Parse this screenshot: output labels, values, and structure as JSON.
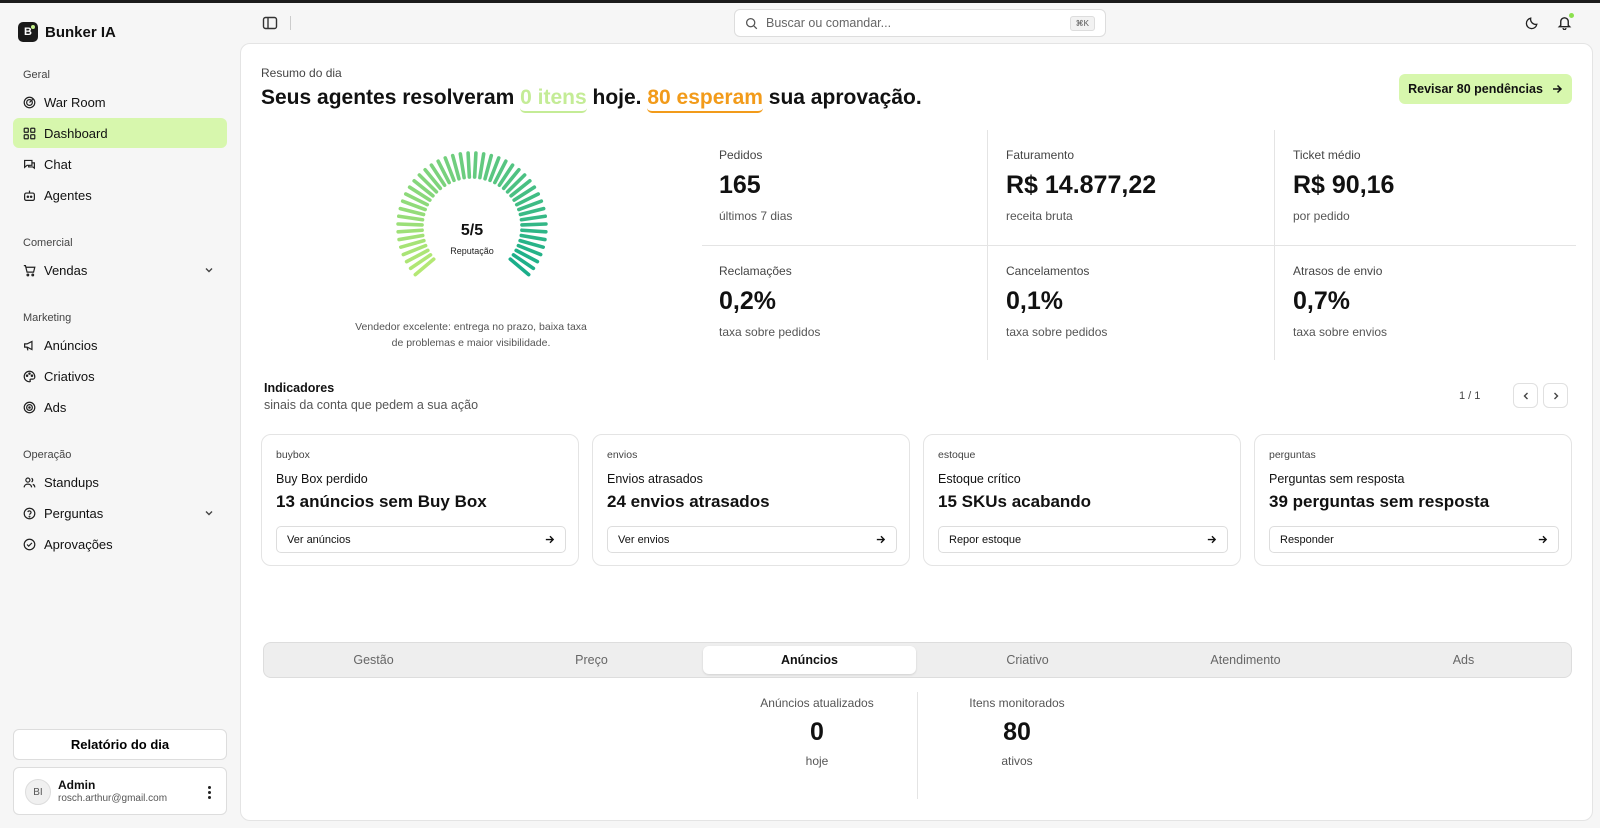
{
  "app": {
    "name": "Bunker IA",
    "logo_letter": "B"
  },
  "sidebar": {
    "groups": [
      {
        "label": "Geral",
        "items": [
          {
            "label": "War Room",
            "icon": "radar-icon"
          },
          {
            "label": "Dashboard",
            "icon": "dashboard-grid-icon",
            "active": true
          },
          {
            "label": "Chat",
            "icon": "chat-icon"
          },
          {
            "label": "Agentes",
            "icon": "bot-icon"
          }
        ]
      },
      {
        "label": "Comercial",
        "items": [
          {
            "label": "Vendas",
            "icon": "cart-icon",
            "expandable": true
          }
        ]
      },
      {
        "label": "Marketing",
        "items": [
          {
            "label": "Anúncios",
            "icon": "megaphone-icon"
          },
          {
            "label": "Criativos",
            "icon": "palette-icon"
          },
          {
            "label": "Ads",
            "icon": "target-icon"
          }
        ]
      },
      {
        "label": "Operação",
        "items": [
          {
            "label": "Standups",
            "icon": "users-icon"
          },
          {
            "label": "Perguntas",
            "icon": "help-circle-icon",
            "expandable": true
          },
          {
            "label": "Aprovações",
            "icon": "check-circle-icon"
          }
        ]
      }
    ],
    "report_button": "Relatório do dia",
    "user": {
      "initials": "BI",
      "name": "Admin",
      "email": "rosch.arthur@gmail.com"
    }
  },
  "header": {
    "search_placeholder": "Buscar ou comandar...",
    "search_shortcut": "⌘K"
  },
  "summary": {
    "label": "Resumo do dia",
    "headline_prefix": "Seus agentes resolveram ",
    "resolved": "0 itens",
    "headline_middle": " hoje. ",
    "waiting": "80 esperam",
    "headline_suffix": " sua aprovação.",
    "review_button": "Revisar 80 pendências"
  },
  "reputation": {
    "value": "5/5",
    "score": 5,
    "max": 5,
    "label": "Reputação",
    "description": "Vendedor excelente: entrega no prazo, baixa taxa de problemas e maior visibilidade."
  },
  "stats": [
    {
      "label": "Pedidos",
      "value": "165",
      "sub": "últimos 7 dias"
    },
    {
      "label": "Faturamento",
      "value": "R$ 14.877,22",
      "sub": "receita bruta"
    },
    {
      "label": "Ticket médio",
      "value": "R$ 90,16",
      "sub": "por pedido"
    },
    {
      "label": "Reclamações",
      "value": "0,2%",
      "sub": "taxa sobre pedidos"
    },
    {
      "label": "Cancelamentos",
      "value": "0,1%",
      "sub": "taxa sobre pedidos"
    },
    {
      "label": "Atrasos de envio",
      "value": "0,7%",
      "sub": "taxa sobre envios"
    }
  ],
  "indicators": {
    "title": "Indicadores",
    "subtitle": "sinais da conta que pedem a sua ação",
    "pager": "1 / 1",
    "cards": [
      {
        "tag": "buybox",
        "title": "Buy Box perdido",
        "value": "13 anúncios sem Buy Box",
        "action": "Ver anúncios"
      },
      {
        "tag": "envios",
        "title": "Envios atrasados",
        "value": "24 envios atrasados",
        "action": "Ver envios"
      },
      {
        "tag": "estoque",
        "title": "Estoque crítico",
        "value": "15 SKUs acabando",
        "action": "Repor estoque"
      },
      {
        "tag": "perguntas",
        "title": "Perguntas sem resposta",
        "value": "39 perguntas sem resposta",
        "action": "Responder"
      }
    ]
  },
  "tabs": [
    {
      "label": "Gestão"
    },
    {
      "label": "Preço"
    },
    {
      "label": "Anúncios",
      "active": true
    },
    {
      "label": "Criativo"
    },
    {
      "label": "Atendimento"
    },
    {
      "label": "Ads"
    }
  ],
  "tab_stats": [
    {
      "label": "Anúncios atualizados",
      "value": "0",
      "sub": "hoje"
    },
    {
      "label": "Itens monitorados",
      "value": "80",
      "sub": "ativos"
    }
  ],
  "colors": {
    "accent": "#d7f7ad",
    "resolved": "#c4ec96",
    "waiting": "#f29b1a",
    "gauge_start": "#b4e874",
    "gauge_end": "#1aae8a"
  }
}
